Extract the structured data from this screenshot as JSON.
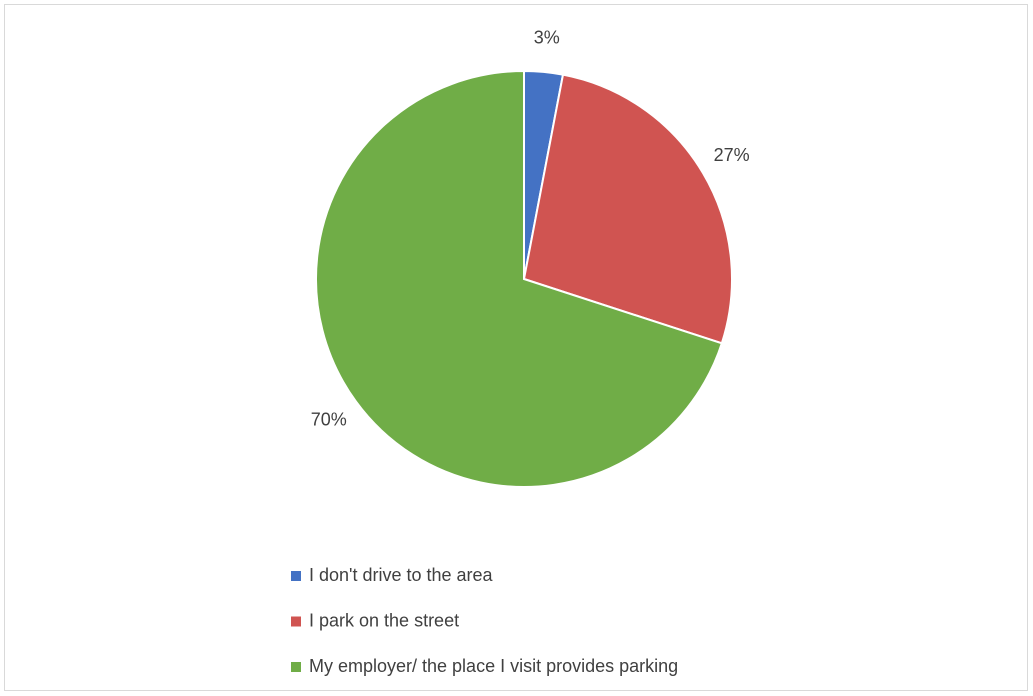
{
  "chart_data": {
    "type": "pie",
    "categories": [
      "I don't drive to the area",
      "I park on the street",
      "My employer/ the place I visit provides parking"
    ],
    "values": [
      3,
      27,
      70
    ],
    "value_labels": [
      "3%",
      "27%",
      "70%"
    ],
    "colors": [
      "#4472c4",
      "#d05451",
      "#70ad47"
    ],
    "legend": "bottom"
  }
}
